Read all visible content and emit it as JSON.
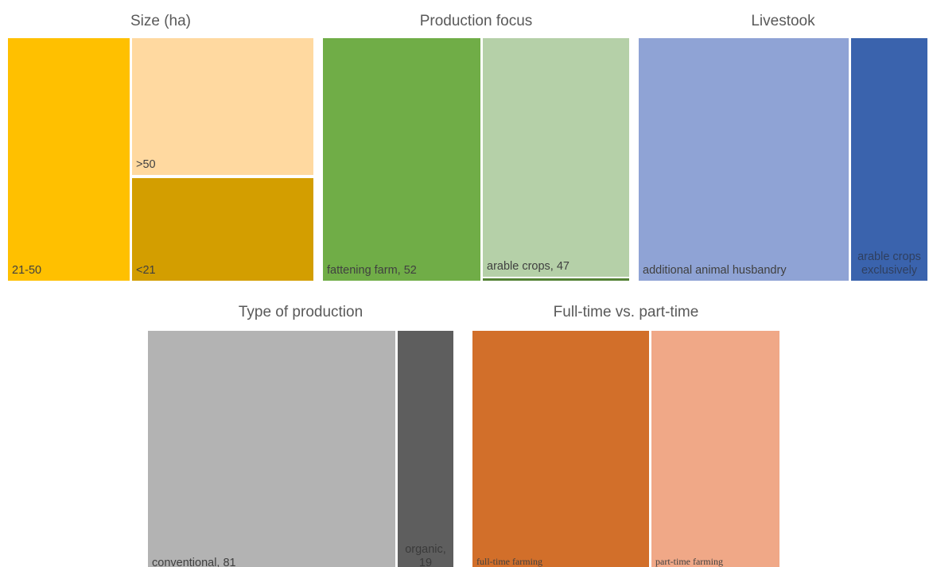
{
  "chart_data": [
    {
      "type": "treemap",
      "title": "Size (ha)",
      "colors": [
        "#FFC000",
        "#FFD9A0",
        "#D39E00"
      ],
      "nodes": [
        {
          "label": "21-50"
        },
        {
          "label": ">50"
        },
        {
          "label": "<21"
        }
      ]
    },
    {
      "type": "treemap",
      "title": "Production focus",
      "colors": [
        "#70AD47",
        "#B5D0A8",
        "#548235"
      ],
      "nodes": [
        {
          "label": "fattening farm, 52",
          "value": 52
        },
        {
          "label": "arable crops, 47",
          "value": 47
        },
        {
          "label": "",
          "value": 1
        }
      ]
    },
    {
      "type": "treemap",
      "title": "Livestook",
      "colors": [
        "#8FA3D5",
        "#3A63AD"
      ],
      "nodes": [
        {
          "label": "additional animal husbandry"
        },
        {
          "label": "arable crops exclusively"
        }
      ]
    },
    {
      "type": "treemap",
      "title": "Type of production",
      "colors": [
        "#B3B3B3",
        "#5E5E5E"
      ],
      "nodes": [
        {
          "label": "conventional, 81",
          "value": 81
        },
        {
          "label": "organic, 19",
          "value": 19
        }
      ]
    },
    {
      "type": "treemap",
      "title": "Full-time vs. part-time",
      "colors": [
        "#D26F2A",
        "#F0A887"
      ],
      "nodes": [
        {
          "label": "full-time farming"
        },
        {
          "label": "part-time farming"
        }
      ]
    }
  ]
}
